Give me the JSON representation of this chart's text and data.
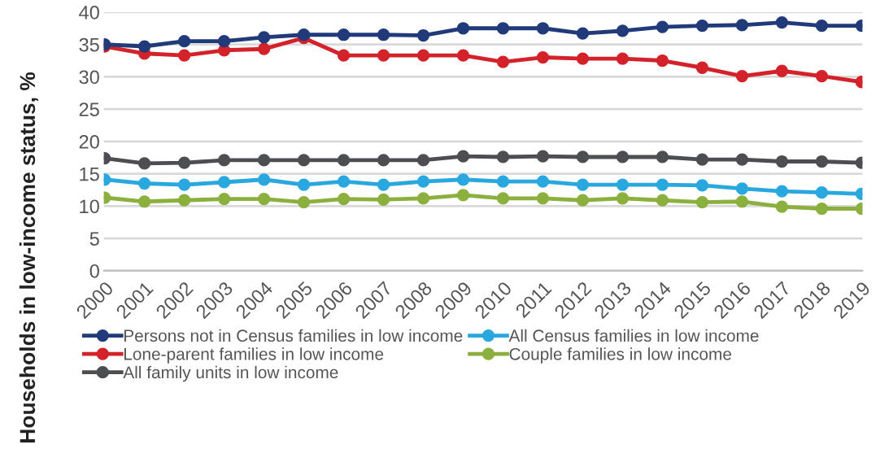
{
  "chart_data": {
    "type": "line",
    "ylabel": "Households in low-income status, %",
    "categories": [
      "2000",
      "2001",
      "2002",
      "2003",
      "2004",
      "2005",
      "2006",
      "2007",
      "2008",
      "2009",
      "2010",
      "2011",
      "2012",
      "2013",
      "2014",
      "2015",
      "2016",
      "2017",
      "2018",
      "2019"
    ],
    "series": [
      {
        "name": "Persons not in Census families in low income",
        "color": "#213b7a",
        "values": [
          35.0,
          34.7,
          35.5,
          35.5,
          36.1,
          36.5,
          36.5,
          36.5,
          36.4,
          37.5,
          37.5,
          37.5,
          36.7,
          37.1,
          37.7,
          37.9,
          38.0,
          38.4,
          37.9,
          37.9
        ]
      },
      {
        "name": "All Census families in low income",
        "color": "#29a8e0",
        "values": [
          14.1,
          13.5,
          13.3,
          13.7,
          14.1,
          13.3,
          13.8,
          13.3,
          13.8,
          14.1,
          13.8,
          13.8,
          13.3,
          13.3,
          13.3,
          13.2,
          12.7,
          12.3,
          12.1,
          11.9
        ]
      },
      {
        "name": "Lone-parent families in low income",
        "color": "#d3222a",
        "values": [
          34.7,
          33.6,
          33.3,
          34.1,
          34.3,
          36.0,
          33.3,
          33.3,
          33.3,
          33.3,
          32.3,
          33.0,
          32.8,
          32.8,
          32.5,
          31.4,
          30.1,
          30.9,
          30.1,
          29.2
        ]
      },
      {
        "name": "Couple families in low income",
        "color": "#8bb03e",
        "values": [
          11.3,
          10.7,
          10.9,
          11.1,
          11.1,
          10.6,
          11.1,
          11.0,
          11.2,
          11.7,
          11.2,
          11.2,
          10.9,
          11.2,
          10.9,
          10.6,
          10.7,
          9.9,
          9.6,
          9.6
        ]
      },
      {
        "name": "All family units in low income",
        "color": "#4d4e52",
        "values": [
          17.4,
          16.6,
          16.7,
          17.1,
          17.1,
          17.1,
          17.1,
          17.1,
          17.1,
          17.7,
          17.6,
          17.7,
          17.6,
          17.6,
          17.6,
          17.2,
          17.2,
          16.9,
          16.9,
          16.7
        ]
      }
    ],
    "ylim": [
      0,
      40
    ],
    "yticks": [
      0,
      5,
      10,
      15,
      20,
      25,
      30,
      35,
      40
    ],
    "grid": "y",
    "legend": "bottom",
    "marker": "circle",
    "line_style": "solid"
  }
}
